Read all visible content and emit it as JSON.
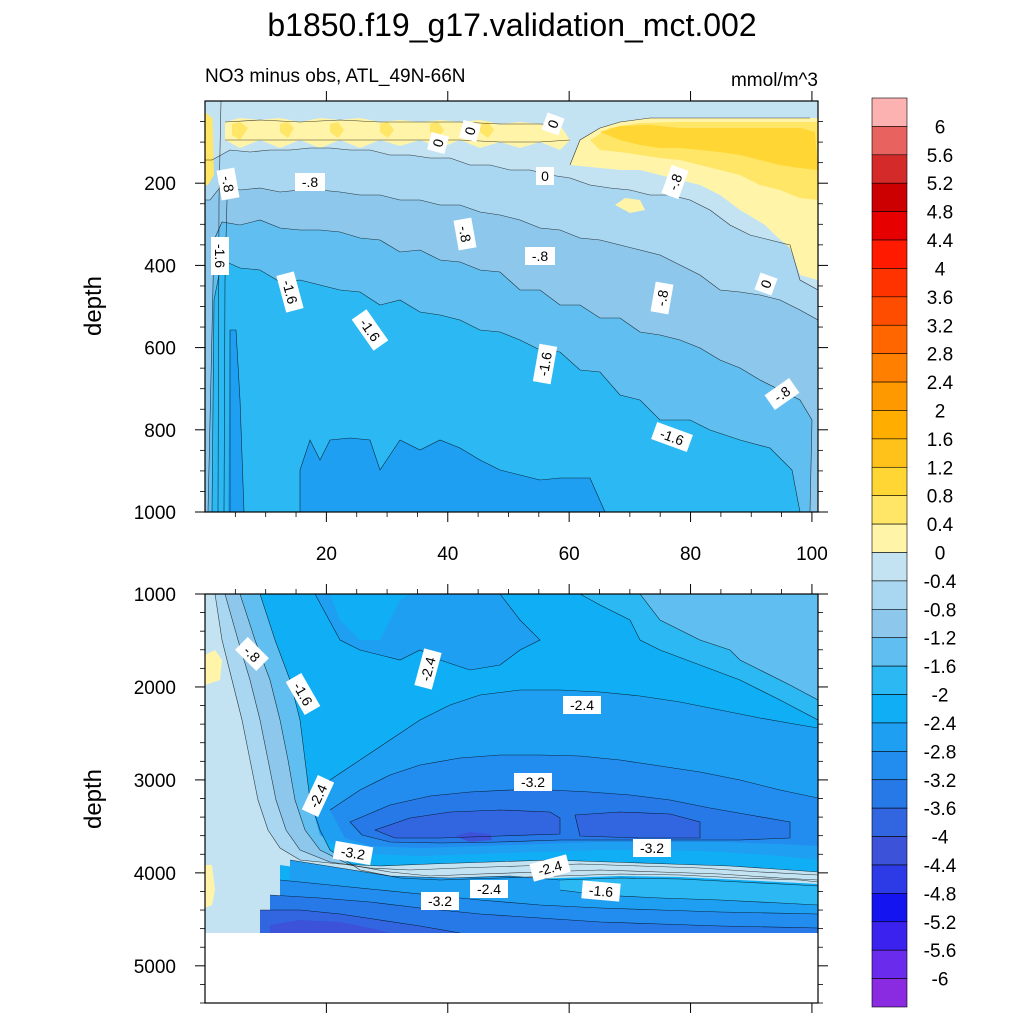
{
  "chart_data": {
    "type": "heatmap",
    "title": "b1850.f19_g17.validation_mct.002",
    "subtitle_left": "NO3 minus obs, ATL_49N-66N",
    "subtitle_right": "mmol/m^3",
    "colorbar": {
      "labels": [
        "6",
        "5.6",
        "5.2",
        "4.8",
        "4.4",
        "4",
        "3.6",
        "3.2",
        "2.8",
        "2.4",
        "2",
        "1.6",
        "1.2",
        "0.8",
        "0.4",
        "0",
        "-0.4",
        "-0.8",
        "-1.2",
        "-1.6",
        "-2",
        "-2.4",
        "-2.8",
        "-3.2",
        "-3.6",
        "-4",
        "-4.4",
        "-4.8",
        "-5.2",
        "-5.6",
        "-6"
      ],
      "colors": [
        "#fdb2b2",
        "#e8625f",
        "#d42a2a",
        "#cc0000",
        "#e60000",
        "#ff1a00",
        "#ff3300",
        "#ff4d00",
        "#ff6600",
        "#ff8000",
        "#ff9900",
        "#ffae00",
        "#ffc21a",
        "#ffd633",
        "#ffe666",
        "#fff4a8",
        "#c3e3f3",
        "#a9d6f0",
        "#8dc8ec",
        "#60bff0",
        "#2cb8f2",
        "#10aff5",
        "#1f9ff2",
        "#238cef",
        "#2879e8",
        "#3266e1",
        "#3b52d9",
        "#2c3be6",
        "#1414f0",
        "#3c22ee",
        "#6a2bec",
        "#8a2be2"
      ]
    },
    "panels": [
      {
        "name": "upper",
        "ylabel": "depth",
        "ylim": [
          1000,
          0
        ],
        "xlim": [
          0,
          101
        ],
        "x_ticks": [
          "20",
          "40",
          "60",
          "80",
          "100"
        ],
        "y_ticks": [
          "200",
          "400",
          "600",
          "800",
          "1000"
        ],
        "contour_labels": [
          "-.8",
          "-.8",
          "0",
          "0",
          "0",
          "0",
          "-.8",
          "-1.6",
          "-.8",
          "-.8",
          "-1.6",
          "-1.6",
          "-.8",
          "0",
          "-1.6",
          "-.8",
          "-1.6"
        ]
      },
      {
        "name": "lower",
        "ylabel": "depth",
        "ylim": [
          5400,
          1000
        ],
        "xlim": [
          0,
          101
        ],
        "x_ticks": [],
        "y_ticks": [
          "1000",
          "2000",
          "3000",
          "4000",
          "5000"
        ],
        "contour_labels": [
          "-.8",
          "-1.6",
          "-2.4",
          "-2.4",
          "-3.2",
          "-2.4",
          "-3.2",
          "-3.2",
          "-2.4",
          "-2.4",
          "-1.6",
          "-3.2"
        ]
      }
    ]
  }
}
